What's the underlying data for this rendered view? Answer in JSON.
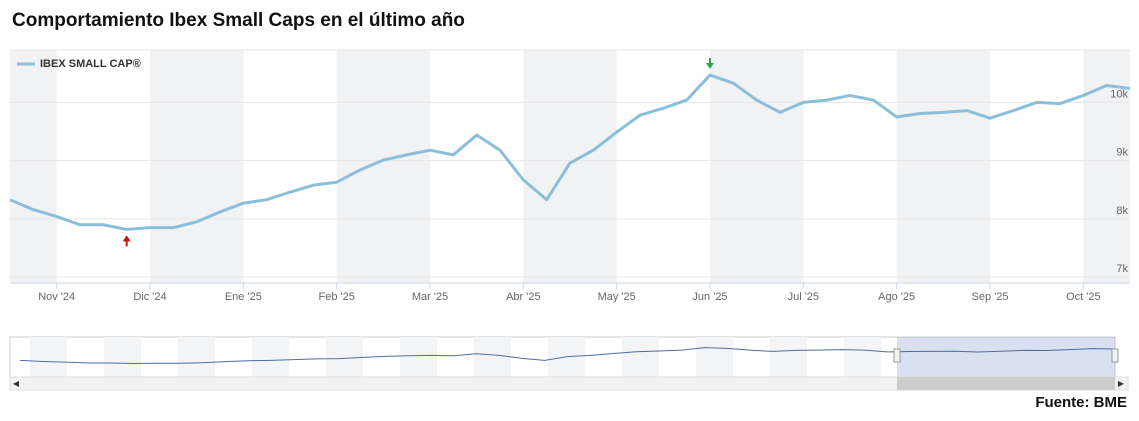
{
  "chart_data": {
    "type": "line",
    "title": "Comportamiento Ibex Small Caps en el último año",
    "source": "Fuente: BME",
    "categories": [
      null,
      null,
      "Nov '24",
      null,
      null,
      null,
      "Dic '24",
      null,
      null,
      null,
      "Ene '25",
      null,
      null,
      null,
      "Feb '25",
      null,
      null,
      null,
      "Mar '25",
      null,
      null,
      null,
      "Abr '25",
      null,
      null,
      null,
      "May '25",
      null,
      null,
      null,
      "Jun '25",
      null,
      null,
      null,
      "Jul '25",
      null,
      null,
      null,
      "Ago '25",
      null,
      null,
      null,
      "Sep '25",
      null,
      null,
      null,
      "Oct '25",
      null,
      null
    ],
    "series": [
      {
        "name": "IBEX SMALL CAP®",
        "color": "#8bbfd9",
        "values": [
          8330,
          8160,
          8040,
          7900,
          7900,
          7820,
          7850,
          7850,
          7950,
          8120,
          8270,
          8330,
          8460,
          8580,
          8630,
          8840,
          9010,
          9100,
          9180,
          9100,
          9440,
          9180,
          8670,
          8330,
          8960,
          9180,
          9490,
          9780,
          9900,
          10040,
          10470,
          10330,
          10040,
          9830,
          10000,
          10040,
          10120,
          10040,
          9750,
          9810,
          9830,
          9860,
          9730,
          9860,
          10000,
          9980,
          10120,
          10290,
          10240
        ]
      }
    ],
    "ylim": [
      6900,
      10900
    ],
    "yticks": [
      {
        "value": 7000,
        "label": "7k"
      },
      {
        "value": 8000,
        "label": "8k"
      },
      {
        "value": 9000,
        "label": "9k"
      },
      {
        "value": 10000,
        "label": "10k"
      }
    ],
    "grid": true,
    "legend": "top-left"
  }
}
